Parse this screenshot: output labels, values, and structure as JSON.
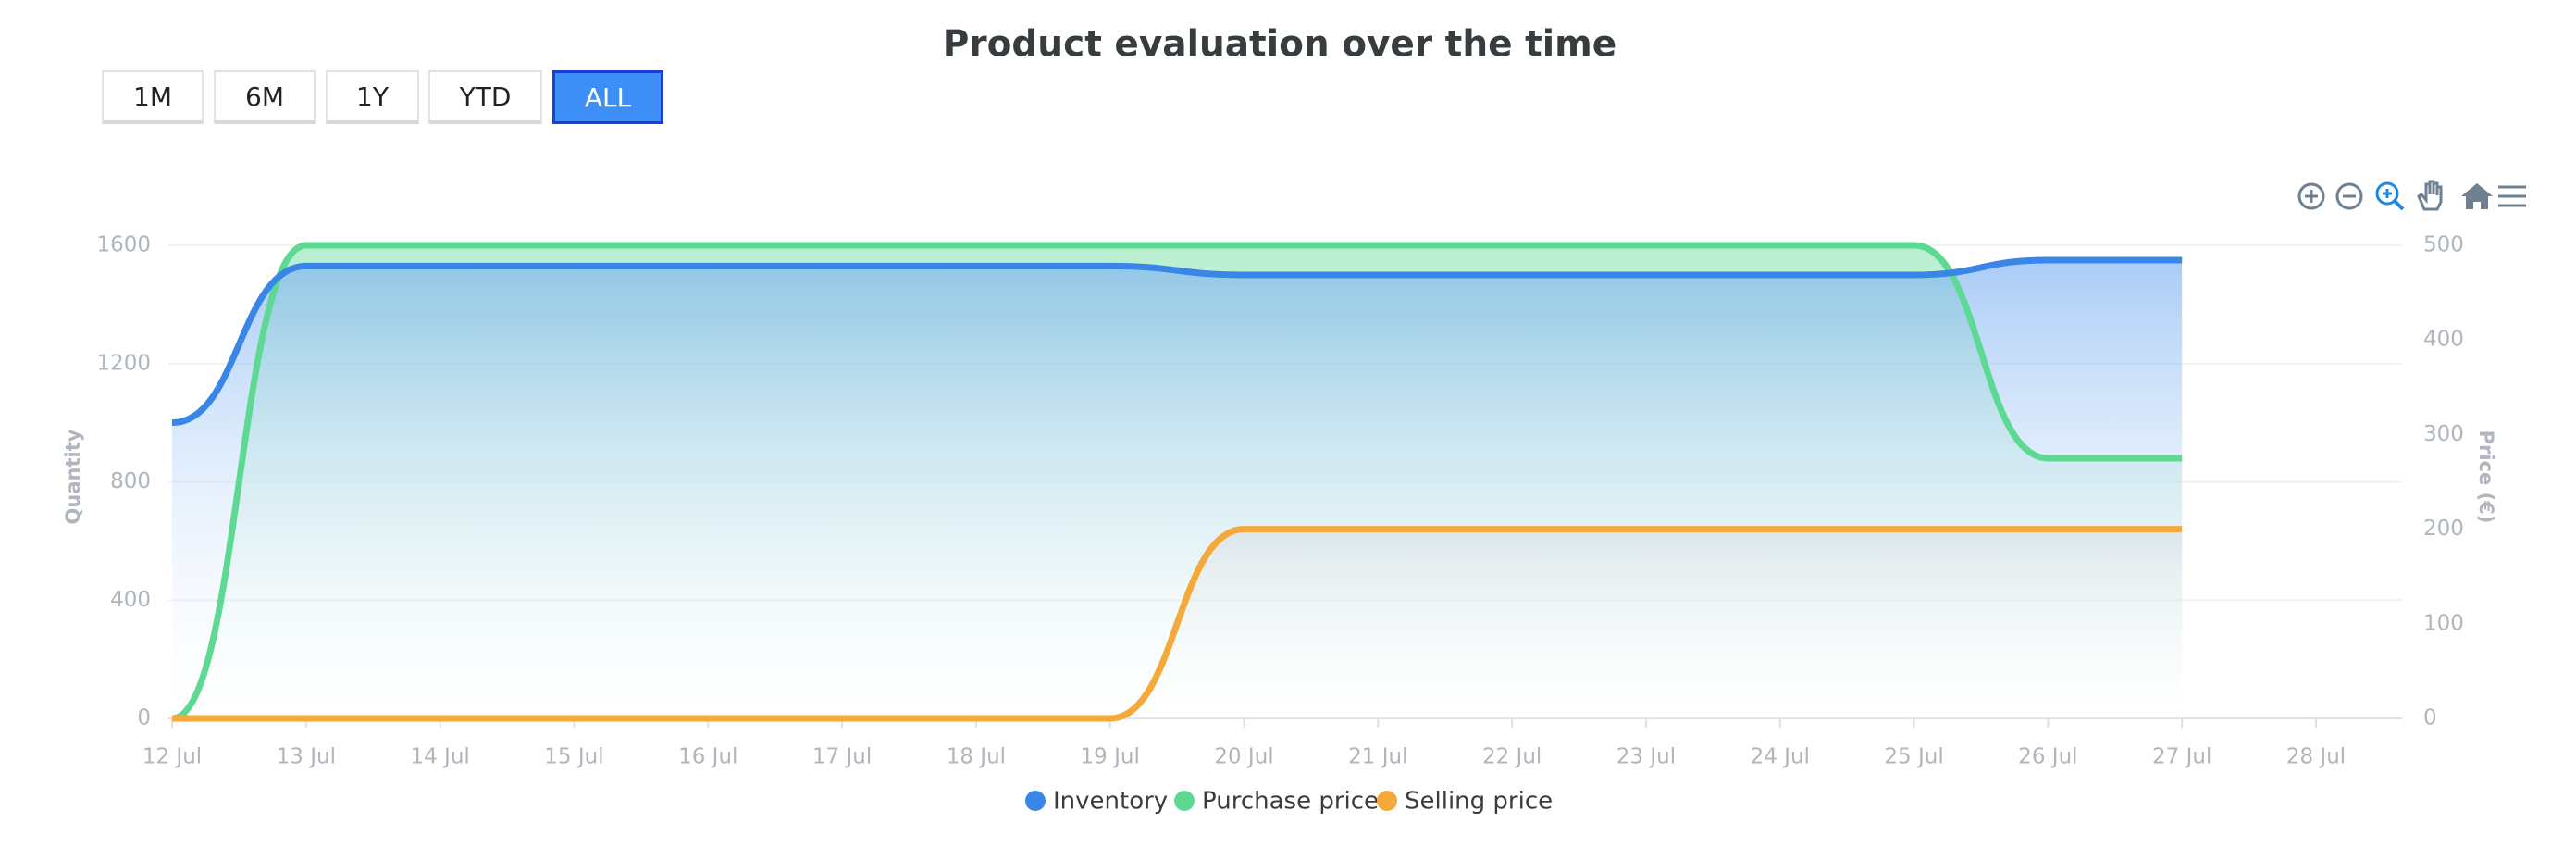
{
  "chart_data": {
    "type": "area",
    "title": "Product evaluation over the time",
    "range_buttons": [
      "1M",
      "6M",
      "1Y",
      "YTD",
      "ALL"
    ],
    "active_button": "ALL",
    "y_label": "Quantity",
    "y2_label": "Price (€)",
    "categories": [
      "12 Jul",
      "13 Jul",
      "14 Jul",
      "15 Jul",
      "16 Jul",
      "17 Jul",
      "18 Jul",
      "19 Jul",
      "20 Jul",
      "21 Jul",
      "22 Jul",
      "23 Jul",
      "24 Jul",
      "25 Jul",
      "26 Jul",
      "27 Jul",
      "28 Jul"
    ],
    "series": [
      {
        "name": "Inventory",
        "color": "#3a86e8",
        "axis": "y",
        "values": [
          1000,
          1530,
          1530,
          1530,
          1530,
          1530,
          1530,
          1530,
          1500,
          1500,
          1500,
          1500,
          1500,
          1500,
          1550,
          1550,
          null
        ]
      },
      {
        "name": "Purchase price",
        "color": "#5ed994",
        "axis": "y2",
        "values": [
          0,
          500,
          500,
          500,
          500,
          500,
          500,
          500,
          500,
          500,
          500,
          500,
          500,
          500,
          275,
          275,
          null
        ]
      },
      {
        "name": "Selling price",
        "color": "#f5a93b",
        "axis": "y2",
        "values": [
          0,
          0,
          0,
          0,
          0,
          0,
          0,
          0,
          200,
          200,
          200,
          200,
          200,
          200,
          200,
          200,
          null
        ]
      }
    ],
    "ylim": [
      0,
      1600
    ],
    "yticks": [
      0,
      400,
      800,
      1200,
      1600
    ],
    "y2lim": [
      0,
      500
    ],
    "y2ticks": [
      0,
      100,
      200,
      300,
      400,
      500
    ],
    "grid": true
  }
}
